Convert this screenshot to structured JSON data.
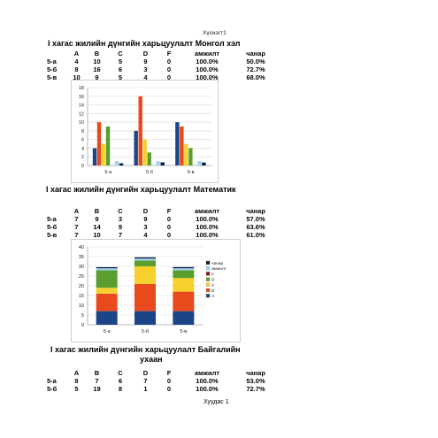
{
  "header": {
    "caption": "Хүснэгт1"
  },
  "sections": [
    {
      "title": "I хагас жилийн дүнгийн харьцуулалт Монгол хэл",
      "columns": [
        "",
        "A",
        "B",
        "C",
        "D",
        "F",
        "амжилт",
        "чанар"
      ],
      "rows": [
        [
          "5-а",
          "4",
          "10",
          "5",
          "9",
          "0",
          "100.0%",
          "50.0%"
        ],
        [
          "5-б",
          "8",
          "16",
          "6",
          "3",
          "0",
          "100.0%",
          "72.7%"
        ],
        [
          "5-в",
          "10",
          "9",
          "5",
          "4",
          "0",
          "100.0%",
          "68.0%"
        ]
      ]
    },
    {
      "title": "I хагас жилийн дүнгийн харьцуулалт Математик",
      "columns": [
        "",
        "A",
        "B",
        "C",
        "D",
        "F",
        "амжилт",
        "чанар"
      ],
      "rows": [
        [
          "5-а",
          "7",
          "9",
          "3",
          "9",
          "0",
          "100.0%",
          "57.0%"
        ],
        [
          "5-б",
          "7",
          "14",
          "9",
          "3",
          "0",
          "100.0%",
          "63.6%"
        ],
        [
          "5-в",
          "7",
          "10",
          "7",
          "4",
          "0",
          "100.0%",
          "61.0%"
        ]
      ]
    },
    {
      "title_line1": "I хагас жилийн дүнгийн харьцуулалт Байгалийн",
      "title_line2": "ухаан",
      "columns": [
        "",
        "A",
        "B",
        "C",
        "D",
        "F",
        "амжилт",
        "чанар"
      ],
      "rows": [
        [
          "5-а",
          "8",
          "7",
          "6",
          "7",
          "0",
          "100.0%",
          "53.0%"
        ],
        [
          "5-б",
          "5",
          "19",
          "8",
          "1",
          "0",
          "100.0%",
          "72.7%"
        ]
      ]
    }
  ],
  "footer": {
    "page_label": "Хуудас 1"
  },
  "chart_data": [
    {
      "type": "bar",
      "categories": [
        "5-а",
        "5-б",
        "5-в"
      ],
      "series": [
        {
          "name": "A",
          "values": [
            4,
            8,
            10
          ],
          "color": "#1c4587"
        },
        {
          "name": "B",
          "values": [
            10,
            16,
            9
          ],
          "color": "#e8491d"
        },
        {
          "name": "C",
          "values": [
            5,
            6,
            5
          ],
          "color": "#f6d02f"
        },
        {
          "name": "D",
          "values": [
            9,
            3,
            4
          ],
          "color": "#5a9e2f"
        },
        {
          "name": "F",
          "values": [
            0,
            0,
            0
          ],
          "color": "#7a1a1a"
        },
        {
          "name": "амжилт",
          "values": [
            1.0,
            1.0,
            1.0
          ],
          "color": "#9fd4f2"
        },
        {
          "name": "чанар",
          "values": [
            0.5,
            0.727,
            0.68
          ],
          "color": "#0b1e3c"
        }
      ],
      "ylim": [
        0,
        18
      ],
      "yticks": [
        "0",
        "2",
        "4",
        "6",
        "8",
        "10",
        "12",
        "14",
        "16",
        "18"
      ],
      "grid": true,
      "legend": "none"
    },
    {
      "type": "bar",
      "stacked": true,
      "categories": [
        "5-а",
        "5-б",
        "5-в"
      ],
      "series": [
        {
          "name": "A",
          "values": [
            7,
            7,
            7
          ],
          "color": "#1c4587"
        },
        {
          "name": "B",
          "values": [
            9,
            14,
            10
          ],
          "color": "#e8491d"
        },
        {
          "name": "C",
          "values": [
            3,
            9,
            7
          ],
          "color": "#f6d02f"
        },
        {
          "name": "D",
          "values": [
            9,
            3,
            4
          ],
          "color": "#5a9e2f"
        },
        {
          "name": "F",
          "values": [
            0,
            0,
            0
          ],
          "color": "#7a1a1a"
        },
        {
          "name": "амжилт",
          "values": [
            1.0,
            1.0,
            1.0
          ],
          "color": "#9fd4f2"
        },
        {
          "name": "чанар",
          "values": [
            0.57,
            0.636,
            0.61
          ],
          "color": "#0b1e3c"
        }
      ],
      "ylim": [
        0,
        40
      ],
      "yticks": [
        "0",
        "5",
        "10",
        "15",
        "20",
        "25",
        "30",
        "35",
        "40"
      ],
      "grid": true,
      "legend": "right",
      "legend_labels": [
        "чанар",
        "амжилт",
        "F",
        "D",
        "C",
        "B",
        "A"
      ]
    }
  ]
}
